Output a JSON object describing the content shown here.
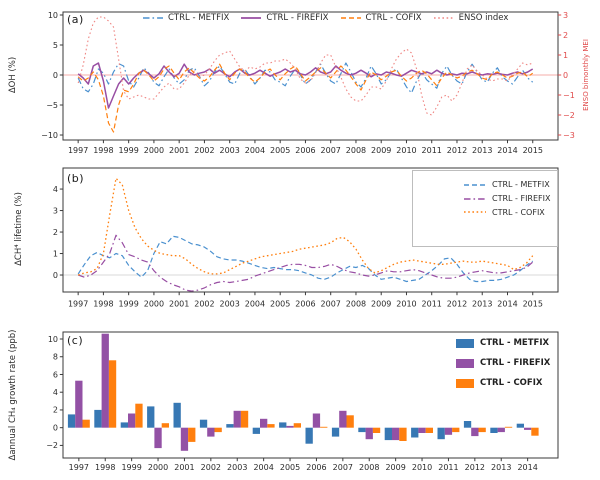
{
  "figure": {
    "panel_letters": [
      "(a)",
      "(b)",
      "(c)"
    ]
  },
  "chart_data": [
    {
      "type": "line",
      "panel_label": "(a)",
      "ylabel": "ΔOH (%)",
      "ylabel_right": "ENSO bimonthly MEI",
      "x_ticks": [
        1997,
        1998,
        1999,
        2000,
        2001,
        2002,
        2003,
        2004,
        2005,
        2006,
        2007,
        2008,
        2009,
        2010,
        2011,
        2012,
        2013,
        2014,
        2015
      ],
      "y_ticks_left": [
        10,
        5,
        0,
        -5,
        -10
      ],
      "y_ticks_right": [
        3,
        2,
        1,
        0,
        -1,
        -2,
        -3
      ],
      "xlim": [
        1996.4,
        2016.0
      ],
      "ylim_left": [
        -10.83,
        10.5
      ],
      "ylim_right": [
        -3.25,
        3.15
      ],
      "x_start": 1997.0,
      "x_step": 0.2,
      "zero_line_color": "#f0908e",
      "right_axis_color": "#e04b4b",
      "series": [
        {
          "name": "CTRL - METFIX",
          "color": "#4a90cf",
          "style": "dashdot",
          "axis": "left",
          "width": 1.2,
          "values": [
            -0.5,
            -2.3,
            -2.8,
            -1.5,
            1.0,
            0.3,
            -1.5,
            0.5,
            1.9,
            1.5,
            -1.0,
            -2.0,
            -0.5,
            1.2,
            0.3,
            -1.2,
            -1.8,
            -0.3,
            1.0,
            -0.5,
            -1.5,
            -0.8,
            0.8,
            1.2,
            -0.2,
            -1.8,
            -1.0,
            0.5,
            1.5,
            0.2,
            -1.2,
            -1.5,
            0.3,
            1.0,
            -0.3,
            -1.5,
            -0.5,
            0.8,
            0.5,
            -0.8,
            -1.2,
            -1.8,
            -0.2,
            1.0,
            0.0,
            -1.5,
            -0.8,
            0.5,
            1.8,
            0.3,
            -1.0,
            -1.5,
            0.2,
            2.0,
            0.5,
            -1.2,
            -2.0,
            -0.5,
            1.5,
            0.2,
            -1.5,
            -0.8,
            0.5,
            1.0,
            -0.5,
            -2.0,
            -3.0,
            -1.0,
            0.5,
            -0.8,
            -1.5,
            -2.2,
            0.3,
            1.5,
            0.0,
            -1.0,
            -1.5,
            0.5,
            1.8,
            0.5,
            -0.8,
            -1.2,
            0.3,
            1.2,
            -0.3,
            -1.0,
            -1.5,
            -0.3,
            0.8,
            -0.5,
            -1.2
          ]
        },
        {
          "name": "CTRL - FIREFIX",
          "color": "#984ea3",
          "style": "solid",
          "axis": "left",
          "width": 1.5,
          "values": [
            0.2,
            -0.5,
            -1.5,
            1.5,
            2.0,
            -1.0,
            -5.5,
            -3.5,
            -1.5,
            -0.5,
            -1.5,
            -0.5,
            0.3,
            0.8,
            0.2,
            -0.5,
            0.2,
            1.5,
            0.5,
            -0.3,
            0.3,
            1.8,
            0.5,
            0.0,
            0.3,
            0.5,
            1.0,
            0.3,
            0.8,
            0.2,
            -0.3,
            0.5,
            1.0,
            0.3,
            0.0,
            0.3,
            0.8,
            0.3,
            -0.2,
            0.2,
            0.5,
            1.0,
            0.5,
            0.8,
            0.2,
            0.0,
            0.5,
            1.2,
            0.5,
            0.2,
            0.5,
            1.5,
            0.8,
            0.3,
            0.0,
            0.3,
            0.8,
            0.3,
            -0.3,
            0.2,
            0.0,
            0.5,
            0.3,
            0.0,
            -0.2,
            0.3,
            0.8,
            0.5,
            0.2,
            0.5,
            0.2,
            0.8,
            0.3,
            0.0,
            0.2,
            0.0,
            0.3,
            0.2,
            0.5,
            0.2,
            0.0,
            0.2,
            0.1,
            0.3,
            0.1,
            0.0,
            0.3,
            0.5,
            0.2,
            0.5,
            1.0
          ]
        },
        {
          "name": "CTRL - COFIX",
          "color": "#ff7f0e",
          "style": "dashed",
          "axis": "left",
          "width": 1.2,
          "values": [
            -0.3,
            -1.0,
            -0.5,
            0.5,
            -0.8,
            -3.5,
            -8.0,
            -9.5,
            -5.0,
            -2.5,
            -2.8,
            -1.5,
            0.3,
            0.8,
            0.0,
            -1.0,
            -0.3,
            1.0,
            1.5,
            0.3,
            -0.8,
            0.5,
            1.2,
            0.3,
            -0.5,
            -1.0,
            -0.3,
            0.8,
            1.8,
            0.3,
            -0.8,
            0.3,
            1.0,
            0.5,
            -0.5,
            -1.2,
            -0.5,
            0.5,
            1.0,
            0.0,
            -0.8,
            0.2,
            1.0,
            1.5,
            0.2,
            -1.0,
            -0.3,
            0.5,
            1.2,
            0.3,
            -0.5,
            0.5,
            1.5,
            0.8,
            -0.3,
            -1.5,
            -2.5,
            -0.8,
            0.5,
            0.0,
            -0.8,
            -0.2,
            0.5,
            0.8,
            -0.2,
            -1.0,
            -0.5,
            0.3,
            0.8,
            0.2,
            -0.8,
            -1.8,
            -0.5,
            0.5,
            0.0,
            -0.5,
            -0.2,
            0.5,
            0.8,
            0.2,
            -0.5,
            -0.8,
            0.2,
            0.5,
            0.0,
            -0.5,
            -0.2,
            0.3,
            0.5,
            -0.3,
            0.3
          ]
        },
        {
          "name": "ENSO index",
          "color": "#ef8683",
          "style": "dotted",
          "axis": "right",
          "width": 1.1,
          "values": [
            -0.4,
            0.5,
            1.8,
            2.6,
            2.9,
            2.9,
            2.7,
            2.4,
            0.8,
            -0.8,
            -1.2,
            -1.1,
            -1.0,
            -1.1,
            -1.2,
            -1.2,
            -0.9,
            -0.6,
            -0.4,
            -0.7,
            -0.7,
            -0.4,
            0.0,
            0.2,
            -0.1,
            0.0,
            0.3,
            0.7,
            1.0,
            1.1,
            1.2,
            0.8,
            0.4,
            0.2,
            0.4,
            0.3,
            0.4,
            0.6,
            0.6,
            0.7,
            0.7,
            0.8,
            0.6,
            0.3,
            -0.2,
            -0.4,
            -0.3,
            0.1,
            0.6,
            1.0,
            1.0,
            0.4,
            -0.1,
            -0.7,
            -1.1,
            -1.3,
            -1.3,
            -1.0,
            -0.6,
            -0.6,
            -0.7,
            -0.3,
            0.3,
            0.8,
            1.1,
            1.3,
            1.1,
            0.3,
            -1.0,
            -1.9,
            -2.0,
            -1.6,
            -1.1,
            -1.0,
            -1.3,
            -1.0,
            -0.4,
            0.3,
            0.5,
            0.2,
            0.0,
            -0.2,
            -0.3,
            -0.2,
            -0.2,
            -0.3,
            0.0,
            0.3,
            0.6,
            0.5,
            0.6
          ]
        }
      ]
    },
    {
      "type": "line",
      "panel_label": "(b)",
      "ylabel": "ΔCH⁴ lifetime (%)",
      "x_ticks": [
        1997,
        1998,
        1999,
        2000,
        2001,
        2002,
        2003,
        2004,
        2005,
        2006,
        2007,
        2008,
        2009,
        2010,
        2011,
        2012,
        2013,
        2014,
        2015
      ],
      "y_ticks_left": [
        4,
        3,
        2,
        1,
        0
      ],
      "xlim": [
        1996.4,
        2016.0
      ],
      "ylim_left": [
        -0.79,
        4.98
      ],
      "x_start": 1997.0,
      "x_step": 0.25,
      "zero_line_color": "#cccccc",
      "series": [
        {
          "name": "CTRL - METFIX",
          "color": "#4a90cf",
          "style": "dashed",
          "axis": "left",
          "width": 1.2,
          "values": [
            0.05,
            0.5,
            0.9,
            1.05,
            0.9,
            0.8,
            1.0,
            0.9,
            0.45,
            0.15,
            -0.1,
            0.2,
            1.0,
            1.55,
            1.45,
            1.8,
            1.75,
            1.6,
            1.45,
            1.4,
            1.3,
            1.1,
            0.85,
            0.75,
            0.7,
            0.7,
            0.65,
            0.55,
            0.45,
            0.35,
            0.3,
            0.35,
            0.3,
            0.25,
            0.25,
            0.2,
            0.1,
            0.0,
            -0.15,
            -0.2,
            -0.1,
            0.1,
            0.25,
            0.4,
            0.35,
            0.45,
            0.3,
            0.0,
            -0.2,
            -0.15,
            -0.1,
            -0.2,
            -0.3,
            -0.25,
            -0.2,
            0.0,
            0.2,
            0.45,
            0.75,
            0.8,
            0.5,
            0.1,
            -0.2,
            -0.3,
            -0.3,
            -0.25,
            -0.25,
            -0.2,
            -0.1,
            0.0,
            0.2,
            0.45,
            0.65
          ]
        },
        {
          "name": "CTRL - FIREFIX",
          "color": "#984ea3",
          "style": "dashdot",
          "axis": "left",
          "width": 1.2,
          "values": [
            0.0,
            -0.1,
            0.0,
            0.2,
            0.6,
            1.0,
            1.85,
            1.5,
            0.95,
            0.85,
            0.7,
            0.6,
            0.2,
            -0.1,
            -0.3,
            -0.45,
            -0.55,
            -0.7,
            -0.75,
            -0.7,
            -0.6,
            -0.45,
            -0.35,
            -0.3,
            -0.35,
            -0.3,
            -0.25,
            -0.2,
            -0.05,
            0.05,
            0.15,
            0.25,
            0.35,
            0.45,
            0.5,
            0.5,
            0.45,
            0.35,
            0.35,
            0.4,
            0.5,
            0.4,
            0.25,
            0.15,
            0.1,
            0.0,
            -0.05,
            0.0,
            0.1,
            0.2,
            0.15,
            0.15,
            0.2,
            0.25,
            0.2,
            0.1,
            0.0,
            -0.1,
            -0.15,
            -0.15,
            -0.1,
            0.0,
            0.1,
            0.15,
            0.2,
            0.15,
            0.1,
            0.1,
            0.15,
            0.2,
            0.25,
            0.35,
            0.6
          ]
        },
        {
          "name": "CTRL - COFIX",
          "color": "#ff7f0e",
          "style": "dotted",
          "axis": "left",
          "width": 1.3,
          "values": [
            0.0,
            0.1,
            0.15,
            0.3,
            1.0,
            2.8,
            4.5,
            4.2,
            3.0,
            2.2,
            1.7,
            1.35,
            1.15,
            1.0,
            0.95,
            0.9,
            0.9,
            0.75,
            0.5,
            0.3,
            0.15,
            0.05,
            0.05,
            0.1,
            0.25,
            0.4,
            0.55,
            0.65,
            0.75,
            0.85,
            0.9,
            0.95,
            1.0,
            1.05,
            1.1,
            1.2,
            1.25,
            1.3,
            1.35,
            1.4,
            1.5,
            1.7,
            1.75,
            1.55,
            1.2,
            0.7,
            0.3,
            0.1,
            0.2,
            0.35,
            0.5,
            0.6,
            0.65,
            0.7,
            0.65,
            0.6,
            0.55,
            0.5,
            0.5,
            0.55,
            0.6,
            0.65,
            0.6,
            0.6,
            0.65,
            0.6,
            0.55,
            0.5,
            0.45,
            0.25,
            0.35,
            0.55,
            0.9
          ]
        }
      ]
    },
    {
      "type": "bar",
      "panel_label": "(c)",
      "ylabel": "Δannual CH₄ growth rate (ppb)",
      "categories": [
        1997,
        1998,
        1999,
        2000,
        2001,
        2002,
        2003,
        2004,
        2005,
        2006,
        2007,
        2008,
        2009,
        2010,
        2011,
        2012,
        2013,
        2014
      ],
      "y_ticks": [
        10,
        8,
        6,
        4,
        2,
        0,
        -2
      ],
      "xlim": [
        1996.4,
        2015.15
      ],
      "ylim": [
        -3.42,
        10.79
      ],
      "series": [
        {
          "name": "CTRL - METFIX",
          "color": "#3778b4",
          "values": [
            1.5,
            2.0,
            0.6,
            2.4,
            2.8,
            0.9,
            0.4,
            -0.7,
            0.6,
            -1.8,
            -1.0,
            -0.5,
            -1.4,
            -1.1,
            -1.3,
            0.75,
            -0.6,
            0.45
          ]
        },
        {
          "name": "CTRL - FIREFIX",
          "color": "#9351a5",
          "values": [
            5.3,
            10.6,
            1.6,
            -2.3,
            -2.6,
            -1.0,
            1.9,
            1.0,
            0.2,
            1.6,
            1.9,
            -1.3,
            -1.4,
            -0.6,
            -0.8,
            -0.95,
            -0.5,
            -0.25
          ]
        },
        {
          "name": "CTRL - COFIX",
          "color": "#ff7f0e",
          "values": [
            0.9,
            7.6,
            2.7,
            0.5,
            -1.6,
            -0.5,
            1.9,
            0.4,
            0.5,
            0.1,
            1.4,
            -0.6,
            -1.5,
            -0.6,
            -0.5,
            -0.5,
            0.1,
            -0.9
          ]
        }
      ]
    }
  ]
}
